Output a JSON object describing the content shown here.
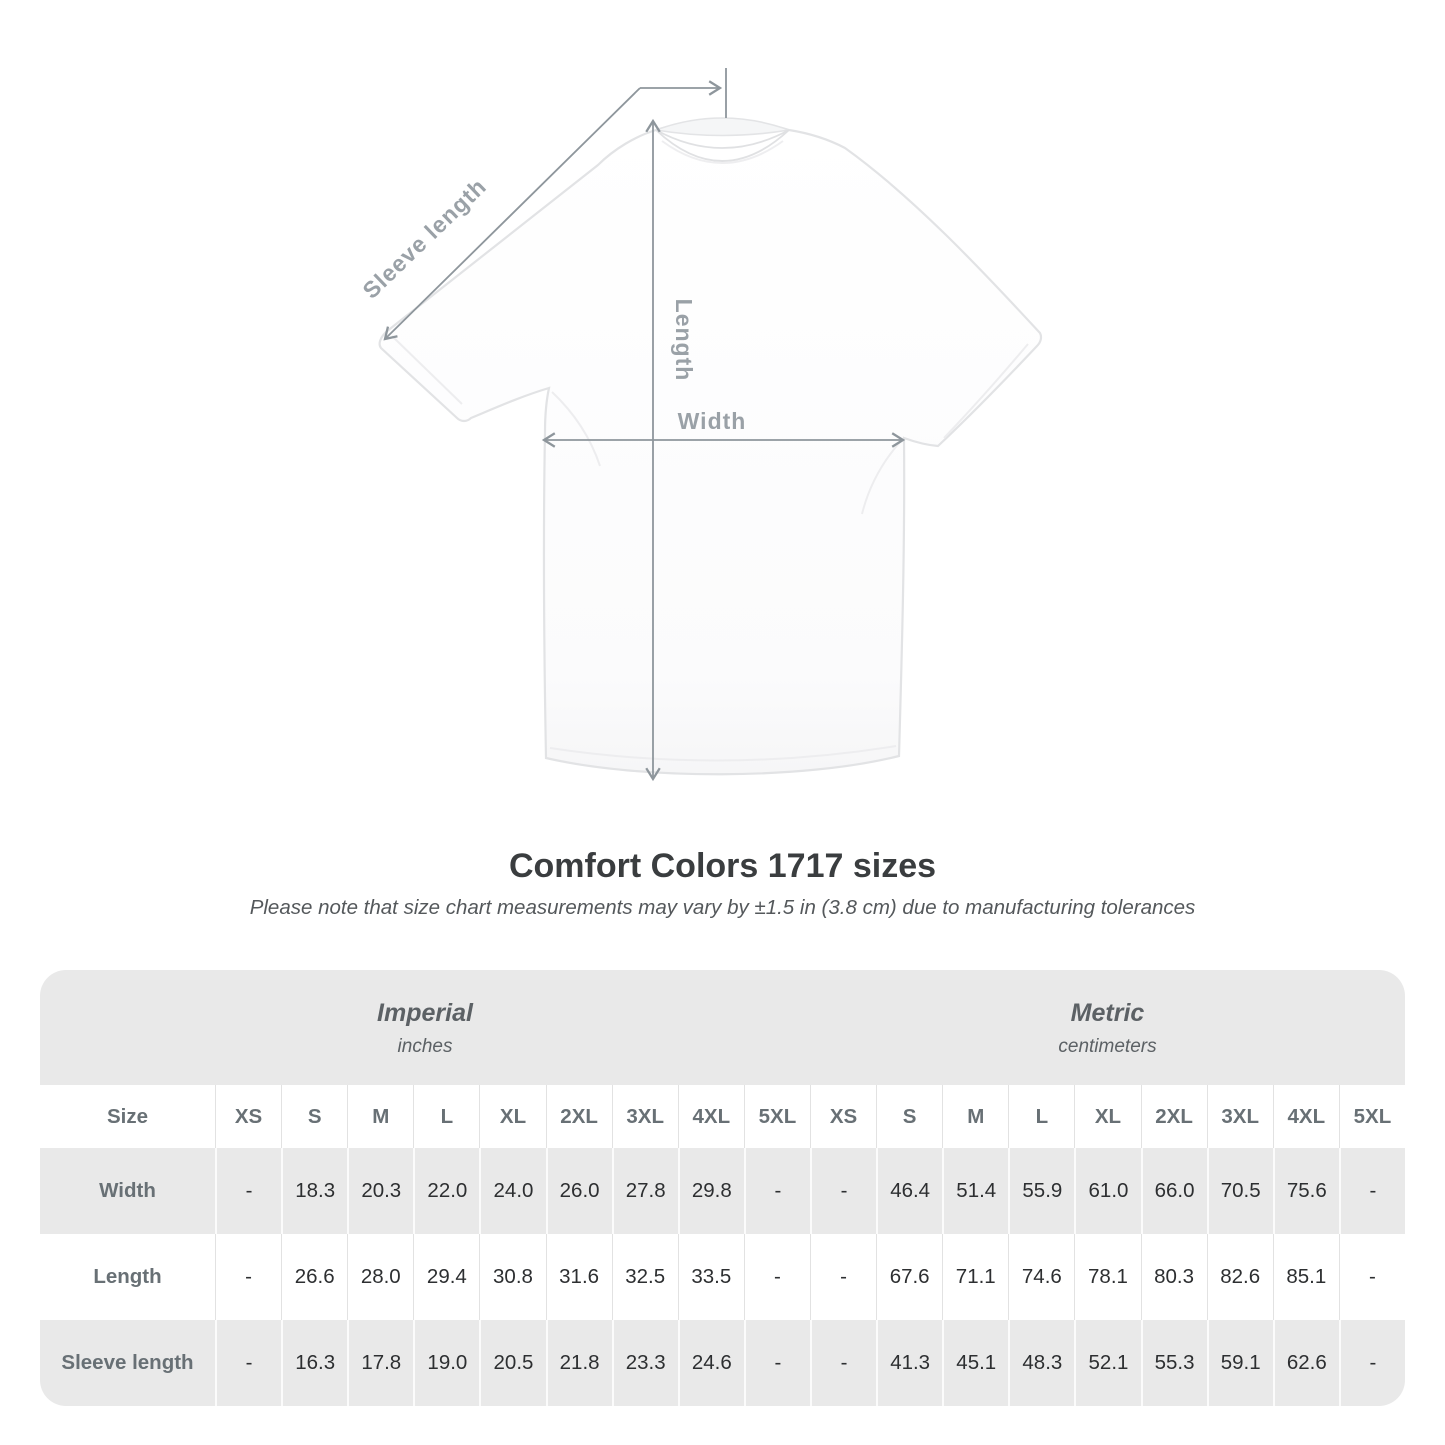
{
  "diagram": {
    "labels": {
      "sleeve_length": "Sleeve length",
      "length": "Length",
      "width": "Width"
    },
    "line_color": "#8e969c"
  },
  "heading": {
    "title": "Comfort Colors 1717 sizes",
    "subtitle": "Please note that size chart measurements may vary by ±1.5 in (3.8 cm) due to manufacturing tolerances"
  },
  "table": {
    "unit_groups": [
      {
        "label": "Imperial",
        "sublabel": "inches"
      },
      {
        "label": "Metric",
        "sublabel": "centimeters"
      }
    ],
    "size_header": "Size",
    "sizes": [
      "XS",
      "S",
      "M",
      "L",
      "XL",
      "2XL",
      "3XL",
      "4XL",
      "5XL"
    ],
    "rows": [
      {
        "label": "Width",
        "imperial": [
          "-",
          "18.3",
          "20.3",
          "22.0",
          "24.0",
          "26.0",
          "27.8",
          "29.8",
          "-"
        ],
        "metric": [
          "-",
          "46.4",
          "51.4",
          "55.9",
          "61.0",
          "66.0",
          "70.5",
          "75.6",
          "-"
        ]
      },
      {
        "label": "Length",
        "imperial": [
          "-",
          "26.6",
          "28.0",
          "29.4",
          "30.8",
          "31.6",
          "32.5",
          "33.5",
          "-"
        ],
        "metric": [
          "-",
          "67.6",
          "71.1",
          "74.6",
          "78.1",
          "80.3",
          "82.6",
          "85.1",
          "-"
        ]
      },
      {
        "label": "Sleeve length",
        "imperial": [
          "-",
          "16.3",
          "17.8",
          "19.0",
          "20.5",
          "21.8",
          "23.3",
          "24.6",
          "-"
        ],
        "metric": [
          "-",
          "41.3",
          "45.1",
          "48.3",
          "52.1",
          "55.3",
          "59.1",
          "62.6",
          "-"
        ]
      }
    ]
  }
}
